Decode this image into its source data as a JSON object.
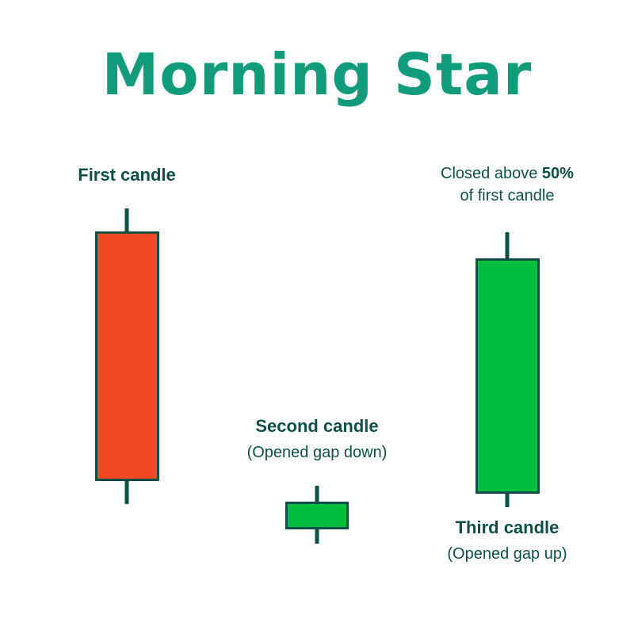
{
  "title": "Morning Star",
  "colors": {
    "title": "#109c7a",
    "outline": "#0e4f47",
    "bearish": "#f04a23",
    "bullish": "#00bf3f"
  },
  "candles": [
    {
      "label": "First candle",
      "sublabel": "",
      "type": "bearish"
    },
    {
      "label": "Second candle",
      "sublabel": "(Opened gap down)",
      "type": "bullish"
    },
    {
      "label": "Third candle",
      "sublabel": "(Opened gap up)",
      "type": "bullish"
    }
  ],
  "annotation": {
    "prefix": "Closed above ",
    "bold": "50%",
    "line2": "of first candle"
  }
}
